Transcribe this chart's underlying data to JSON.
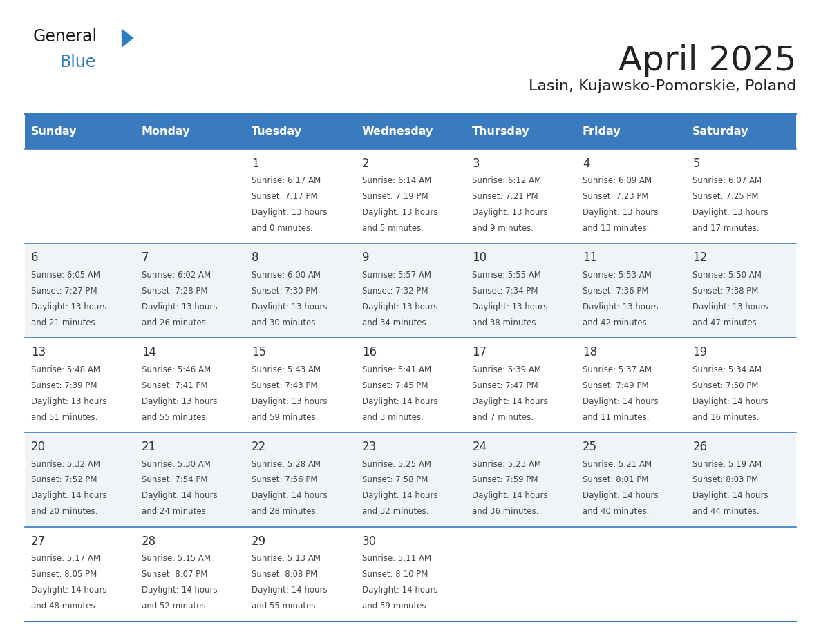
{
  "title": "April 2025",
  "subtitle": "Lasin, Kujawsko-Pomorskie, Poland",
  "header_bg_color": "#3a7abf",
  "header_text_color": "#ffffff",
  "header_days": [
    "Sunday",
    "Monday",
    "Tuesday",
    "Wednesday",
    "Thursday",
    "Friday",
    "Saturday"
  ],
  "alt_row_color": "#f0f4f8",
  "normal_row_color": "#ffffff",
  "border_color": "#3a7abf",
  "day_number_color": "#333333",
  "cell_text_color": "#444444",
  "title_color": "#222222",
  "subtitle_color": "#222222",
  "general_text_color": "#1a1a1a",
  "general_blue_color": "#2b7fc1",
  "weeks": [
    {
      "days": [
        {
          "date": "",
          "info": ""
        },
        {
          "date": "",
          "info": ""
        },
        {
          "date": "1",
          "info": "Sunrise: 6:17 AM\nSunset: 7:17 PM\nDaylight: 13 hours\nand 0 minutes."
        },
        {
          "date": "2",
          "info": "Sunrise: 6:14 AM\nSunset: 7:19 PM\nDaylight: 13 hours\nand 5 minutes."
        },
        {
          "date": "3",
          "info": "Sunrise: 6:12 AM\nSunset: 7:21 PM\nDaylight: 13 hours\nand 9 minutes."
        },
        {
          "date": "4",
          "info": "Sunrise: 6:09 AM\nSunset: 7:23 PM\nDaylight: 13 hours\nand 13 minutes."
        },
        {
          "date": "5",
          "info": "Sunrise: 6:07 AM\nSunset: 7:25 PM\nDaylight: 13 hours\nand 17 minutes."
        }
      ]
    },
    {
      "days": [
        {
          "date": "6",
          "info": "Sunrise: 6:05 AM\nSunset: 7:27 PM\nDaylight: 13 hours\nand 21 minutes."
        },
        {
          "date": "7",
          "info": "Sunrise: 6:02 AM\nSunset: 7:28 PM\nDaylight: 13 hours\nand 26 minutes."
        },
        {
          "date": "8",
          "info": "Sunrise: 6:00 AM\nSunset: 7:30 PM\nDaylight: 13 hours\nand 30 minutes."
        },
        {
          "date": "9",
          "info": "Sunrise: 5:57 AM\nSunset: 7:32 PM\nDaylight: 13 hours\nand 34 minutes."
        },
        {
          "date": "10",
          "info": "Sunrise: 5:55 AM\nSunset: 7:34 PM\nDaylight: 13 hours\nand 38 minutes."
        },
        {
          "date": "11",
          "info": "Sunrise: 5:53 AM\nSunset: 7:36 PM\nDaylight: 13 hours\nand 42 minutes."
        },
        {
          "date": "12",
          "info": "Sunrise: 5:50 AM\nSunset: 7:38 PM\nDaylight: 13 hours\nand 47 minutes."
        }
      ]
    },
    {
      "days": [
        {
          "date": "13",
          "info": "Sunrise: 5:48 AM\nSunset: 7:39 PM\nDaylight: 13 hours\nand 51 minutes."
        },
        {
          "date": "14",
          "info": "Sunrise: 5:46 AM\nSunset: 7:41 PM\nDaylight: 13 hours\nand 55 minutes."
        },
        {
          "date": "15",
          "info": "Sunrise: 5:43 AM\nSunset: 7:43 PM\nDaylight: 13 hours\nand 59 minutes."
        },
        {
          "date": "16",
          "info": "Sunrise: 5:41 AM\nSunset: 7:45 PM\nDaylight: 14 hours\nand 3 minutes."
        },
        {
          "date": "17",
          "info": "Sunrise: 5:39 AM\nSunset: 7:47 PM\nDaylight: 14 hours\nand 7 minutes."
        },
        {
          "date": "18",
          "info": "Sunrise: 5:37 AM\nSunset: 7:49 PM\nDaylight: 14 hours\nand 11 minutes."
        },
        {
          "date": "19",
          "info": "Sunrise: 5:34 AM\nSunset: 7:50 PM\nDaylight: 14 hours\nand 16 minutes."
        }
      ]
    },
    {
      "days": [
        {
          "date": "20",
          "info": "Sunrise: 5:32 AM\nSunset: 7:52 PM\nDaylight: 14 hours\nand 20 minutes."
        },
        {
          "date": "21",
          "info": "Sunrise: 5:30 AM\nSunset: 7:54 PM\nDaylight: 14 hours\nand 24 minutes."
        },
        {
          "date": "22",
          "info": "Sunrise: 5:28 AM\nSunset: 7:56 PM\nDaylight: 14 hours\nand 28 minutes."
        },
        {
          "date": "23",
          "info": "Sunrise: 5:25 AM\nSunset: 7:58 PM\nDaylight: 14 hours\nand 32 minutes."
        },
        {
          "date": "24",
          "info": "Sunrise: 5:23 AM\nSunset: 7:59 PM\nDaylight: 14 hours\nand 36 minutes."
        },
        {
          "date": "25",
          "info": "Sunrise: 5:21 AM\nSunset: 8:01 PM\nDaylight: 14 hours\nand 40 minutes."
        },
        {
          "date": "26",
          "info": "Sunrise: 5:19 AM\nSunset: 8:03 PM\nDaylight: 14 hours\nand 44 minutes."
        }
      ]
    },
    {
      "days": [
        {
          "date": "27",
          "info": "Sunrise: 5:17 AM\nSunset: 8:05 PM\nDaylight: 14 hours\nand 48 minutes."
        },
        {
          "date": "28",
          "info": "Sunrise: 5:15 AM\nSunset: 8:07 PM\nDaylight: 14 hours\nand 52 minutes."
        },
        {
          "date": "29",
          "info": "Sunrise: 5:13 AM\nSunset: 8:08 PM\nDaylight: 14 hours\nand 55 minutes."
        },
        {
          "date": "30",
          "info": "Sunrise: 5:11 AM\nSunset: 8:10 PM\nDaylight: 14 hours\nand 59 minutes."
        },
        {
          "date": "",
          "info": ""
        },
        {
          "date": "",
          "info": ""
        },
        {
          "date": "",
          "info": ""
        }
      ]
    }
  ]
}
